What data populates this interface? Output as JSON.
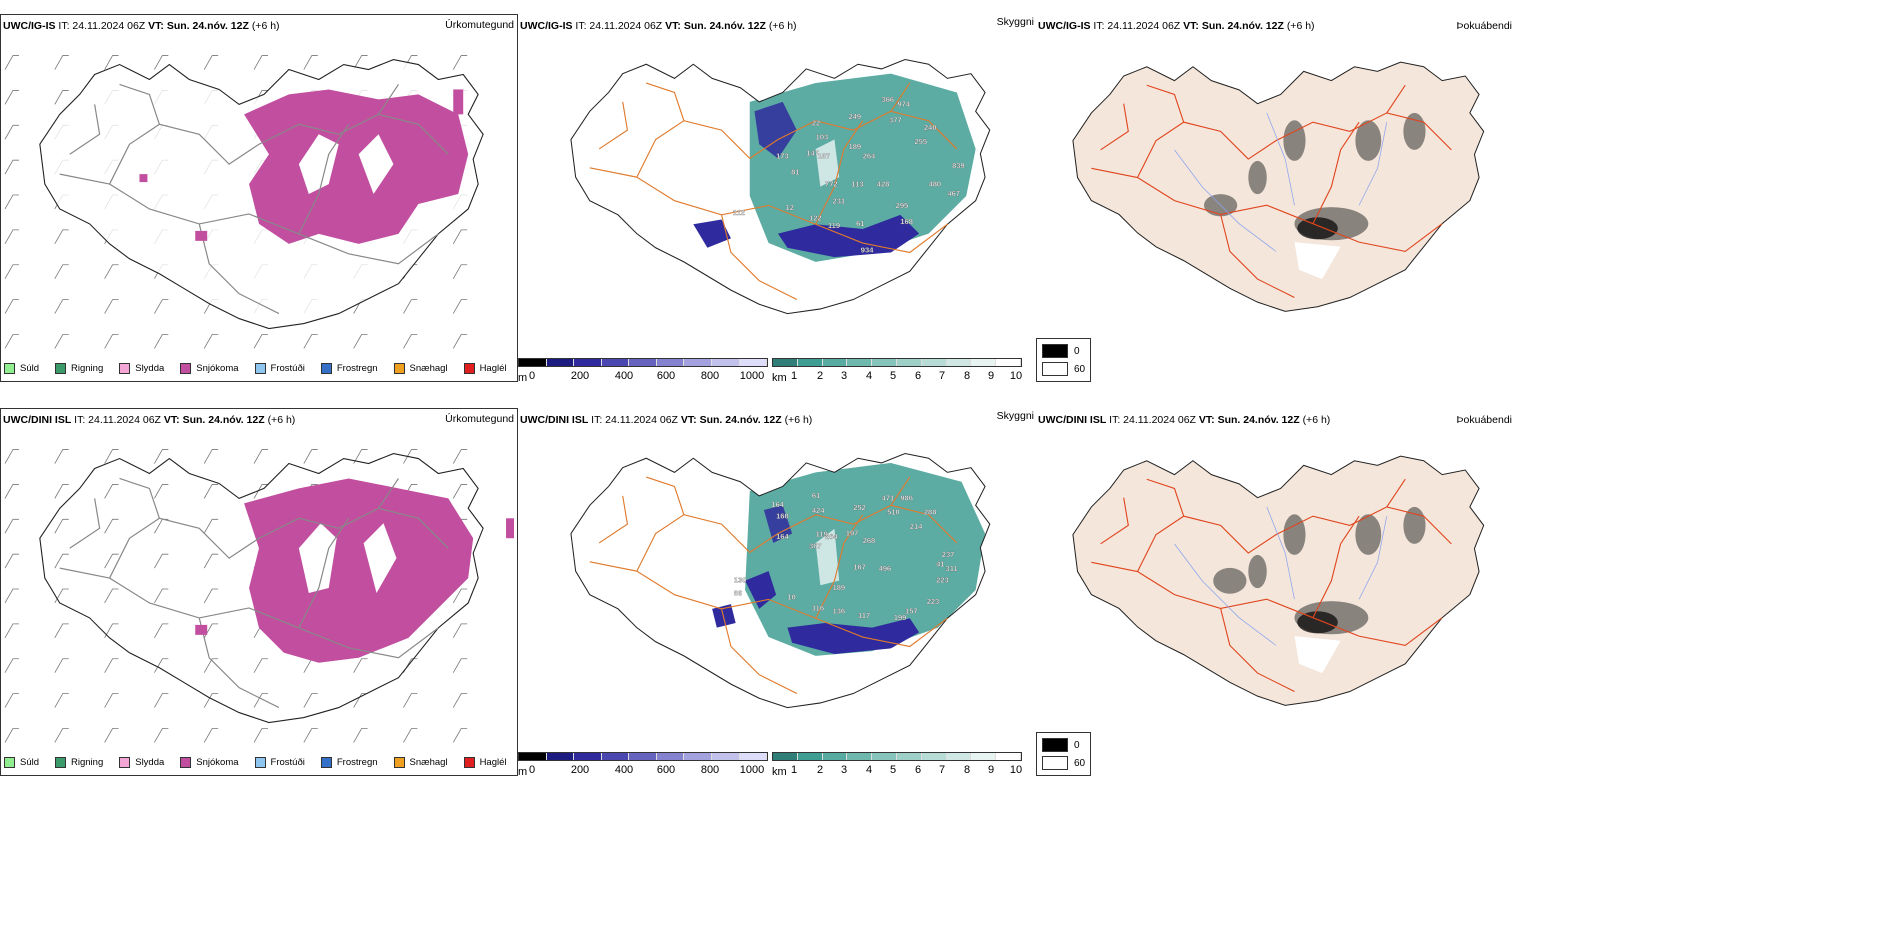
{
  "colors": {
    "snow": "#c24ea0",
    "teal": "#3f9e93",
    "darkblue": "#2f2a9e",
    "road": "#e07a2c",
    "sand": "#f4e6da",
    "redroad": "#e0451e",
    "river": "#8aa3f0"
  },
  "rows": [
    {
      "model": "UWC/IG-IS",
      "it": "IT: 24.11.2024 06Z",
      "vt_label": "VT:",
      "vt": "Sun. 24.nóv. 12Z",
      "lead": "(+6 h)",
      "titles": [
        "Úrkomutegund",
        "Skyggni",
        "Þokuábendi"
      ],
      "labels": [
        "366",
        "974",
        "377",
        "249",
        "240",
        "255",
        "189",
        "264",
        "839",
        "480",
        "467",
        "428",
        "295",
        "168",
        "61",
        "119",
        "122",
        "934",
        "231",
        "772",
        "113",
        "173",
        "147",
        "187",
        "22",
        "103",
        "81",
        "12",
        "112"
      ]
    },
    {
      "model": "UWC/DINI ISL",
      "it": "IT: 24.11.2024 06Z",
      "vt_label": "VT:",
      "vt": "Sun. 24.nóv. 12Z",
      "lead": "(+6 h)",
      "titles": [
        "Úrkomutegund",
        "Skyggni",
        "Þokuábendi"
      ],
      "labels": [
        "471",
        "986",
        "510",
        "288",
        "214",
        "237",
        "311",
        "223",
        "223",
        "496",
        "268",
        "197",
        "252",
        "424",
        "164",
        "160",
        "164",
        "61",
        "367",
        "119",
        "264",
        "167",
        "189",
        "136",
        "116",
        "117",
        "199",
        "157",
        "130",
        "86",
        "10",
        "41"
      ]
    }
  ],
  "precip_legend": [
    {
      "label": "Súld",
      "color": "#90ee90"
    },
    {
      "label": "Rigning",
      "color": "#3a9a6a"
    },
    {
      "label": "Slydda",
      "color": "#f4a6d7"
    },
    {
      "label": "Snjókoma",
      "color": "#c24ea0"
    },
    {
      "label": "Frostúði",
      "color": "#8fc6f0"
    },
    {
      "label": "Frostregn",
      "color": "#3470c8"
    },
    {
      "label": "Snæhagl",
      "color": "#f0a020"
    },
    {
      "label": "Haglél",
      "color": "#e02020"
    }
  ],
  "ceiling_scale": {
    "unit": "m",
    "ticks": [
      "0",
      "200",
      "400",
      "600",
      "800",
      "1000"
    ]
  },
  "visibility_scale": {
    "unit": "km",
    "ticks": [
      "1",
      "2",
      "3",
      "4",
      "5",
      "6",
      "7",
      "8",
      "9",
      "10"
    ]
  },
  "cloud_legend": {
    "top": "0",
    "bottom": "60"
  }
}
